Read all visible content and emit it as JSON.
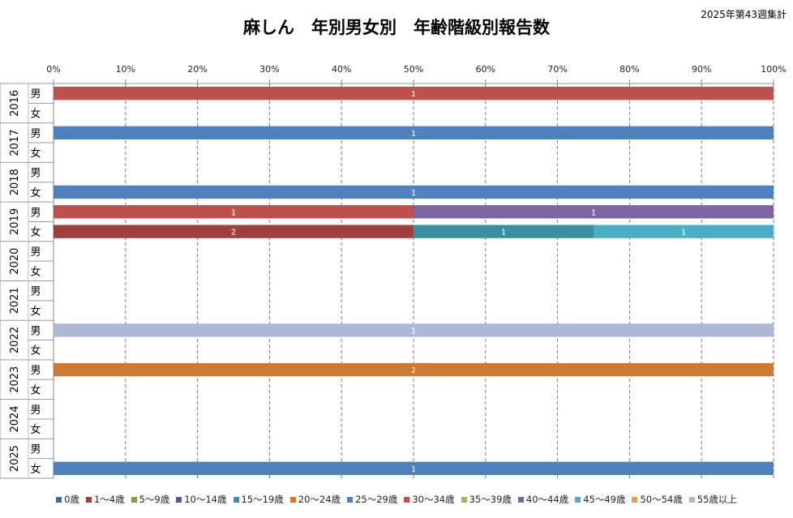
{
  "chart_data": {
    "type": "bar",
    "orientation": "horizontal",
    "stacked": "percent",
    "title": "麻しん　年別男女別　年齢階級別報告数",
    "note": "2025年第43週集計",
    "xlim": [
      0,
      100
    ],
    "x_ticks": [
      "0%",
      "10%",
      "20%",
      "30%",
      "40%",
      "50%",
      "60%",
      "70%",
      "80%",
      "90%",
      "100%"
    ],
    "grid": "vertical dashed",
    "legend_position": "bottom",
    "series_names": [
      "0歳",
      "1〜4歳",
      "5〜9歳",
      "10〜14歳",
      "15〜19歳",
      "20〜24歳",
      "25〜29歳",
      "30〜34歳",
      "35〜39歳",
      "40〜44歳",
      "45〜49歳",
      "50〜54歳",
      "55歳以上"
    ],
    "colors": [
      "#3f6aa0",
      "#a0403d",
      "#7f9a48",
      "#6a4f8f",
      "#3a8fa3",
      "#cc7a35",
      "#4f81bd",
      "#c0504d",
      "#9bbb59",
      "#8064a2",
      "#4bacc6",
      "#f79646",
      "#a9b9d6"
    ],
    "years": [
      "2016",
      "2017",
      "2018",
      "2019",
      "2020",
      "2021",
      "2022",
      "2023",
      "2024",
      "2025"
    ],
    "sexes": [
      "男",
      "女"
    ],
    "rows": [
      {
        "year": "2016",
        "sex": "男",
        "counts": {
          "30〜34歳": 1
        }
      },
      {
        "year": "2016",
        "sex": "女",
        "counts": {}
      },
      {
        "year": "2017",
        "sex": "男",
        "counts": {
          "25〜29歳": 1
        }
      },
      {
        "year": "2017",
        "sex": "女",
        "counts": {}
      },
      {
        "year": "2018",
        "sex": "男",
        "counts": {}
      },
      {
        "year": "2018",
        "sex": "女",
        "counts": {
          "25〜29歳": 1
        }
      },
      {
        "year": "2019",
        "sex": "男",
        "counts": {
          "30〜34歳": 1,
          "40〜44歳": 1
        }
      },
      {
        "year": "2019",
        "sex": "女",
        "counts": {
          "1〜4歳": 2,
          "15〜19歳": 1,
          "45〜49歳": 1
        }
      },
      {
        "year": "2020",
        "sex": "男",
        "counts": {}
      },
      {
        "year": "2020",
        "sex": "女",
        "counts": {}
      },
      {
        "year": "2021",
        "sex": "男",
        "counts": {}
      },
      {
        "year": "2021",
        "sex": "女",
        "counts": {}
      },
      {
        "year": "2022",
        "sex": "男",
        "counts": {
          "55歳以上": 1
        }
      },
      {
        "year": "2022",
        "sex": "女",
        "counts": {}
      },
      {
        "year": "2023",
        "sex": "男",
        "counts": {
          "20〜24歳": 2
        }
      },
      {
        "year": "2023",
        "sex": "女",
        "counts": {}
      },
      {
        "year": "2024",
        "sex": "男",
        "counts": {}
      },
      {
        "year": "2024",
        "sex": "女",
        "counts": {}
      },
      {
        "year": "2025",
        "sex": "男",
        "counts": {}
      },
      {
        "year": "2025",
        "sex": "女",
        "counts": {
          "25〜29歳": 1
        }
      }
    ]
  }
}
